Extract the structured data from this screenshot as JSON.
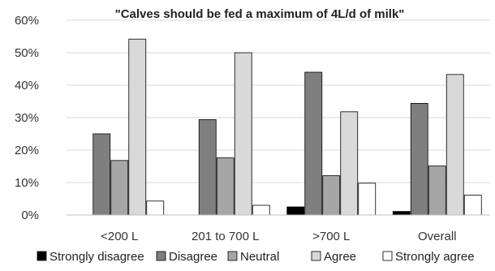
{
  "chart_data": {
    "type": "bar",
    "title": "\"Calves should be fed a maximum of 4L/d of milk\"",
    "xlabel": "",
    "ylabel": "",
    "ylim": [
      0,
      60
    ],
    "y_ticks": [
      "0%",
      "10%",
      "20%",
      "30%",
      "40%",
      "50%",
      "60%"
    ],
    "y_tick_values": [
      0,
      10,
      20,
      30,
      40,
      50,
      60
    ],
    "grid": true,
    "legend_position": "bottom",
    "categories": [
      "<200 L",
      "201 to 700 L",
      ">700 L",
      "Overall"
    ],
    "series": [
      {
        "name": "Strongly disagree",
        "color": "#000000",
        "values": [
          0,
          0,
          2.5,
          1.1
        ]
      },
      {
        "name": "Disagree",
        "color": "#7f7f7f",
        "values": [
          25,
          29.4,
          44,
          34.4
        ]
      },
      {
        "name": "Neutral",
        "color": "#a6a6a6",
        "values": [
          16.8,
          17.6,
          12.1,
          15.1
        ]
      },
      {
        "name": "Agree",
        "color": "#d9d9d9",
        "values": [
          54.2,
          50,
          31.8,
          43.3
        ]
      },
      {
        "name": "Strongly agree",
        "color": "#ffffff",
        "values": [
          4.3,
          3,
          9.8,
          6.1
        ]
      }
    ]
  }
}
